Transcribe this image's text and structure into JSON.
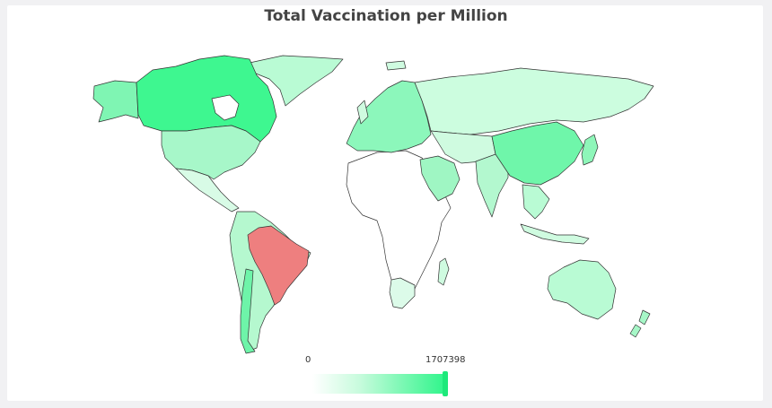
{
  "map": {
    "title": "Total Vaccination per Million",
    "colorbar": {
      "min_label": "0",
      "max_label": "1707398",
      "min": 0,
      "max": 1707398,
      "color_low": "#ffffff",
      "color_high": "#2ef58a"
    },
    "highlight_color": "#ee7f7f",
    "regions": [
      {
        "name": "Canada",
        "fill": "#3ef790"
      },
      {
        "name": "Alaska",
        "fill": "#7ff5b3"
      },
      {
        "name": "Greenland",
        "fill": "#b9fbd4"
      },
      {
        "name": "United States",
        "fill": "#a7f7c9"
      },
      {
        "name": "Mexico",
        "fill": "#d8fbe6"
      },
      {
        "name": "Brazil",
        "fill": "#ee7f7f"
      },
      {
        "name": "South America",
        "fill": "#b5f8cf"
      },
      {
        "name": "Chile",
        "fill": "#6ef4a9"
      },
      {
        "name": "Africa",
        "fill": "#ffffff"
      },
      {
        "name": "South Africa",
        "fill": "#dcfbe9"
      },
      {
        "name": "Europe",
        "fill": "#8cf7bb"
      },
      {
        "name": "Russia",
        "fill": "#ccfddf"
      },
      {
        "name": "China",
        "fill": "#6ff6aa"
      },
      {
        "name": "India",
        "fill": "#b3f8cf"
      },
      {
        "name": "Arabia",
        "fill": "#9ff6c3"
      },
      {
        "name": "Southeast Asia",
        "fill": "#b9fbd4"
      },
      {
        "name": "Japan",
        "fill": "#8ef6b9"
      },
      {
        "name": "Australia",
        "fill": "#b9fbd4"
      },
      {
        "name": "New Zealand",
        "fill": "#a6f7c7"
      }
    ]
  }
}
